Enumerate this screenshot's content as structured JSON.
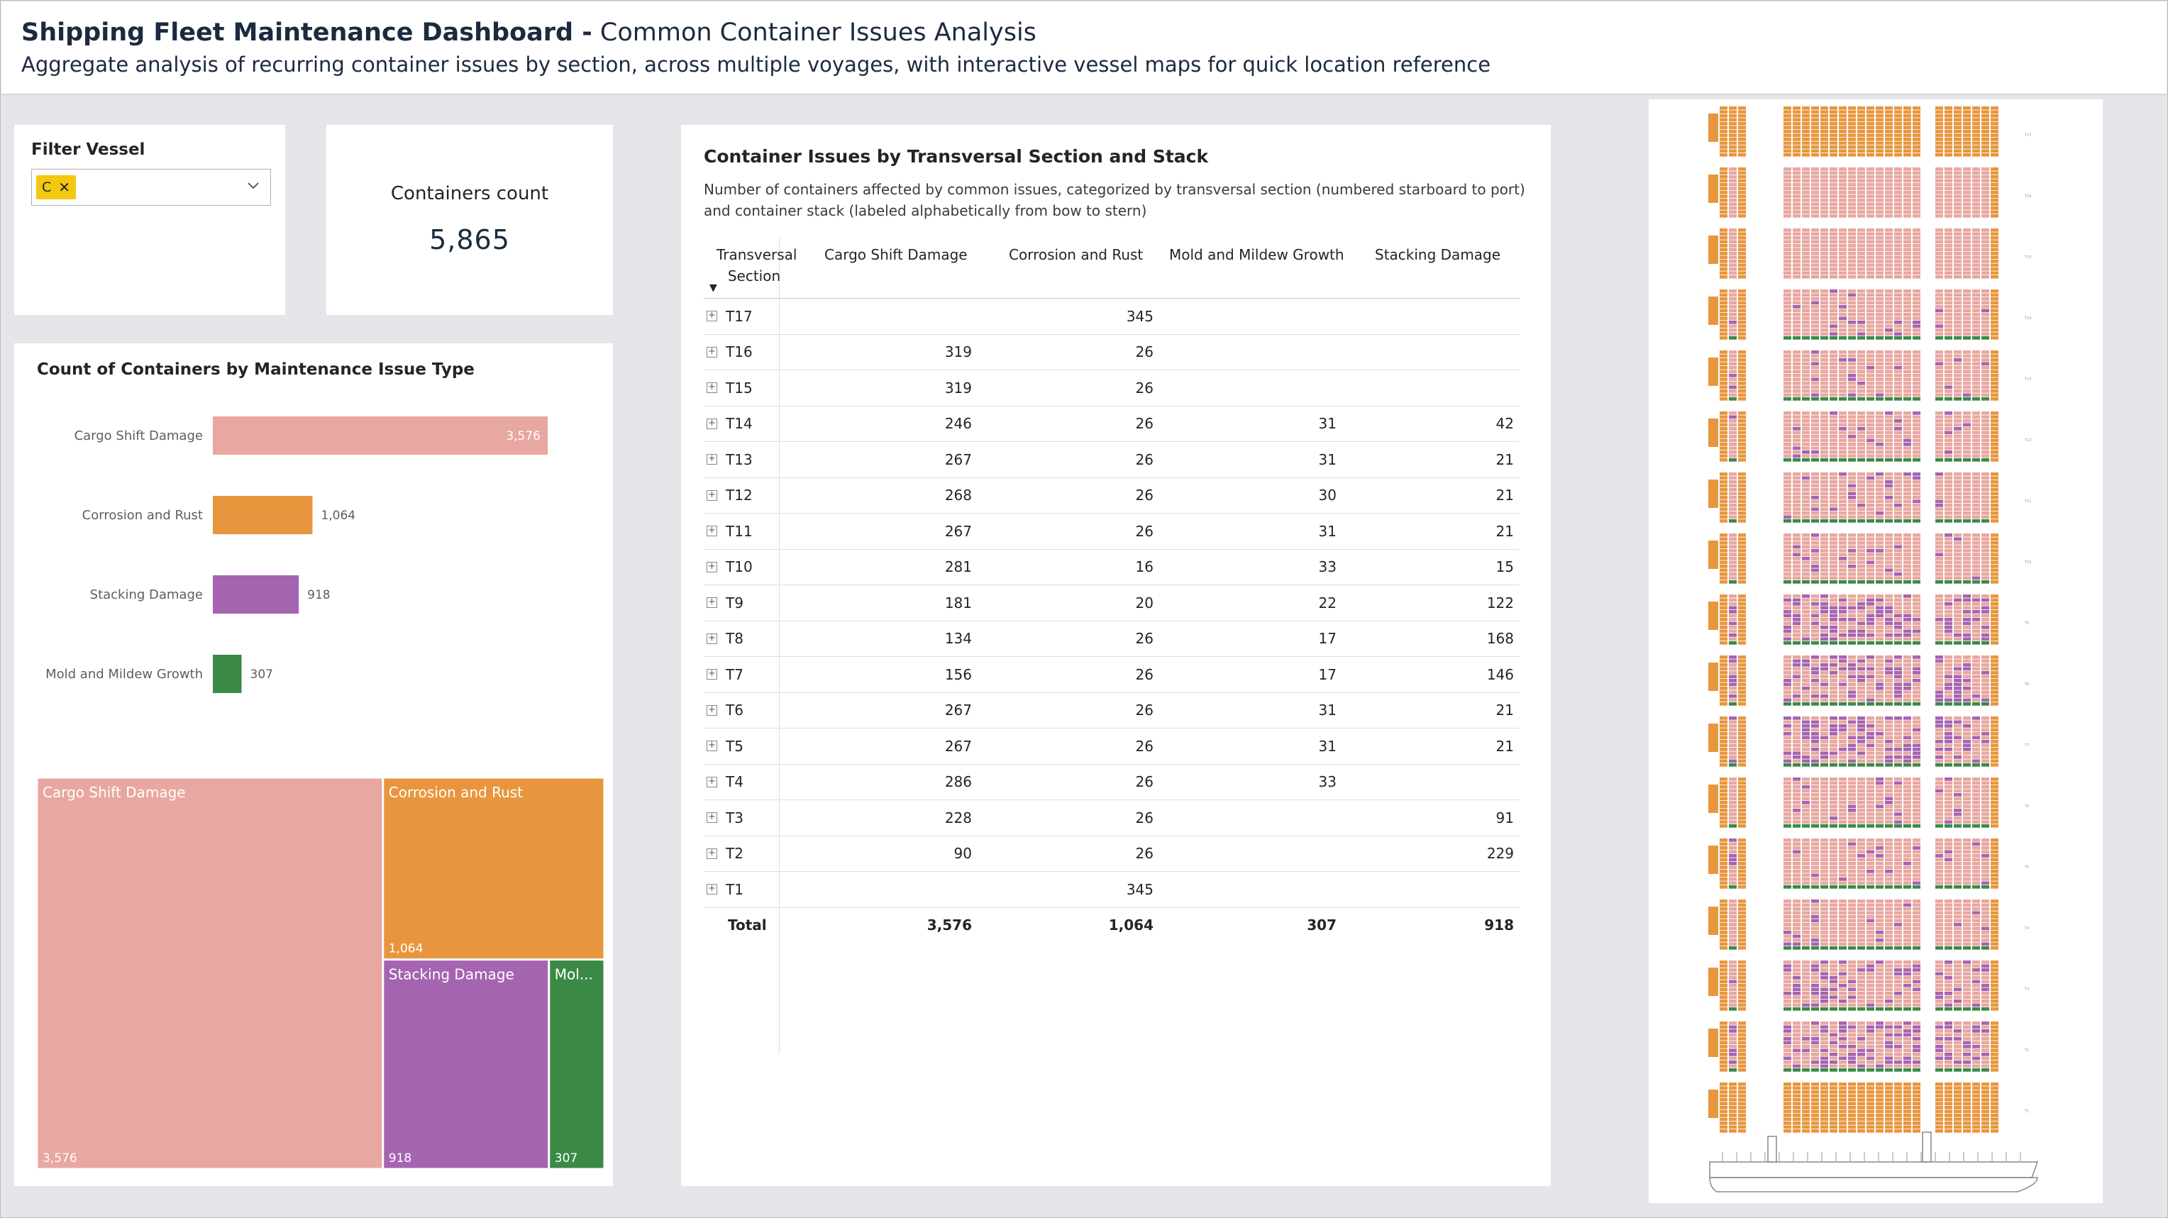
{
  "header": {
    "title_bold": "Shipping Fleet Maintenance Dashboard -",
    "title_light": " Common Container Issues Analysis",
    "subtitle": "Aggregate analysis of recurring container issues by section, across multiple voyages, with interactive vessel maps for quick location reference"
  },
  "filter": {
    "title": "Filter Vessel",
    "selected": "C",
    "remove_icon": "close-icon",
    "dropdown_icon": "chevron-down-icon"
  },
  "kpi": {
    "label": "Containers count",
    "value": "5,865"
  },
  "colors": {
    "cargo_shift": "#e8a7a0",
    "corrosion": "#e8963d",
    "stacking": "#a564b0",
    "mold": "#3a8a46"
  },
  "bar_chart": {
    "title": "Count of Containers by Maintenance Issue Type"
  },
  "chart_data": [
    {
      "type": "bar",
      "orientation": "horizontal",
      "title": "Count of Containers by Maintenance Issue Type",
      "categories": [
        "Cargo Shift Damage",
        "Corrosion and Rust",
        "Stacking Damage",
        "Mold and Mildew Growth"
      ],
      "values": [
        3576,
        1064,
        918,
        307
      ],
      "labels": [
        "3,576",
        "1,064",
        "918",
        "307"
      ],
      "colors": [
        "#e8a7a0",
        "#e8963d",
        "#a564b0",
        "#3a8a46"
      ]
    },
    {
      "type": "treemap",
      "categories": [
        "Cargo Shift Damage",
        "Corrosion and Rust",
        "Stacking Damage",
        "Mol..."
      ],
      "values": [
        3576,
        1064,
        918,
        307
      ],
      "labels": [
        "3,576",
        "1,064",
        "918",
        "307"
      ],
      "colors": [
        "#e8a7a0",
        "#e8963d",
        "#a564b0",
        "#3a8a46"
      ]
    }
  ],
  "table": {
    "title": "Container Issues by Transversal Section and Stack",
    "subtitle": "Number of containers affected by common issues, categorized by transversal section (numbered starboard to port) and container stack (labeled alphabetically from bow to stern)",
    "columns": [
      "Transversal Section",
      "Cargo Shift Damage",
      "Corrosion and Rust",
      "Mold and Mildew Growth",
      "Stacking Damage"
    ],
    "column_1_line1": "Transversal",
    "column_1_line2": "Section",
    "expand_glyph": "+",
    "rows": [
      {
        "section": "T17",
        "cargo": "",
        "corrosion": "345",
        "mold": "",
        "stacking": ""
      },
      {
        "section": "T16",
        "cargo": "319",
        "corrosion": "26",
        "mold": "",
        "stacking": ""
      },
      {
        "section": "T15",
        "cargo": "319",
        "corrosion": "26",
        "mold": "",
        "stacking": ""
      },
      {
        "section": "T14",
        "cargo": "246",
        "corrosion": "26",
        "mold": "31",
        "stacking": "42"
      },
      {
        "section": "T13",
        "cargo": "267",
        "corrosion": "26",
        "mold": "31",
        "stacking": "21"
      },
      {
        "section": "T12",
        "cargo": "268",
        "corrosion": "26",
        "mold": "30",
        "stacking": "21"
      },
      {
        "section": "T11",
        "cargo": "267",
        "corrosion": "26",
        "mold": "31",
        "stacking": "21"
      },
      {
        "section": "T10",
        "cargo": "281",
        "corrosion": "16",
        "mold": "33",
        "stacking": "15"
      },
      {
        "section": "T9",
        "cargo": "181",
        "corrosion": "20",
        "mold": "22",
        "stacking": "122"
      },
      {
        "section": "T8",
        "cargo": "134",
        "corrosion": "26",
        "mold": "17",
        "stacking": "168"
      },
      {
        "section": "T7",
        "cargo": "156",
        "corrosion": "26",
        "mold": "17",
        "stacking": "146"
      },
      {
        "section": "T6",
        "cargo": "267",
        "corrosion": "26",
        "mold": "31",
        "stacking": "21"
      },
      {
        "section": "T5",
        "cargo": "267",
        "corrosion": "26",
        "mold": "31",
        "stacking": "21"
      },
      {
        "section": "T4",
        "cargo": "286",
        "corrosion": "26",
        "mold": "33",
        "stacking": ""
      },
      {
        "section": "T3",
        "cargo": "228",
        "corrosion": "26",
        "mold": "",
        "stacking": "91"
      },
      {
        "section": "T2",
        "cargo": "90",
        "corrosion": "26",
        "mold": "",
        "stacking": "229"
      },
      {
        "section": "T1",
        "cargo": "",
        "corrosion": "345",
        "mold": "",
        "stacking": ""
      }
    ],
    "total": {
      "section": "Total",
      "cargo": "3,576",
      "corrosion": "1,064",
      "mold": "307",
      "stacking": "918"
    }
  },
  "vessel_map": {
    "bays": [
      {
        "name": "T17",
        "pattern": "orange"
      },
      {
        "name": "T16",
        "pattern": "pink"
      },
      {
        "name": "T15",
        "pattern": "pink"
      },
      {
        "name": "T14",
        "pattern": "mixed-light"
      },
      {
        "name": "T13",
        "pattern": "mixed-light"
      },
      {
        "name": "T12",
        "pattern": "mixed-light"
      },
      {
        "name": "T11",
        "pattern": "mixed-light"
      },
      {
        "name": "T10",
        "pattern": "mixed-light"
      },
      {
        "name": "T9",
        "pattern": "mixed-heavy"
      },
      {
        "name": "T8",
        "pattern": "mixed-heavy"
      },
      {
        "name": "T7",
        "pattern": "mixed-heavy"
      },
      {
        "name": "T6",
        "pattern": "mixed-light"
      },
      {
        "name": "T5",
        "pattern": "mixed-light"
      },
      {
        "name": "T4",
        "pattern": "mixed-light"
      },
      {
        "name": "T3",
        "pattern": "mixed-medium"
      },
      {
        "name": "T2",
        "pattern": "mixed-heavy"
      },
      {
        "name": "T1",
        "pattern": "orange"
      }
    ]
  }
}
